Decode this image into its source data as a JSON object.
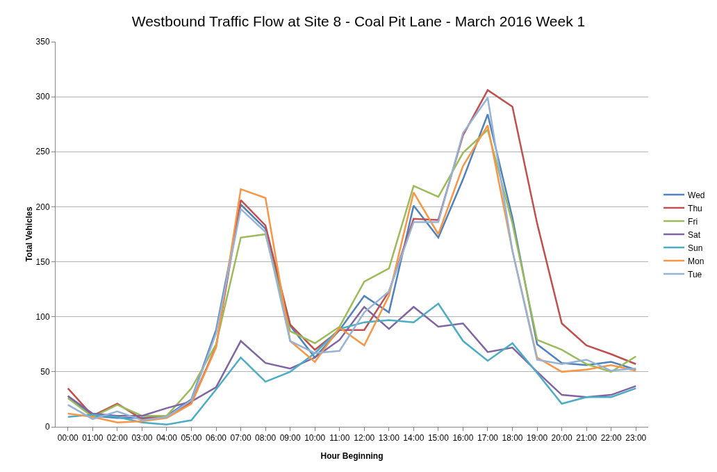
{
  "chart_data": {
    "type": "line",
    "title": "Westbound Traffic Flow at Site 8 - Coal Pit Lane - March 2016 Week 1",
    "xlabel": "Hour Beginning",
    "ylabel": "Total Vehicles",
    "categories": [
      "00:00",
      "01:00",
      "02:00",
      "03:00",
      "04:00",
      "05:00",
      "06:00",
      "07:00",
      "08:00",
      "09:00",
      "10:00",
      "11:00",
      "12:00",
      "13:00",
      "14:00",
      "15:00",
      "16:00",
      "17:00",
      "18:00",
      "19:00",
      "20:00",
      "21:00",
      "22:00",
      "23:00"
    ],
    "series": [
      {
        "name": "Wed",
        "color": "#4f81bd",
        "values": [
          28,
          10,
          8,
          8,
          10,
          25,
          88,
          202,
          180,
          92,
          63,
          88,
          119,
          104,
          201,
          172,
          225,
          284,
          190,
          75,
          58,
          56,
          59,
          52
        ]
      },
      {
        "name": "Thu",
        "color": "#c0504d",
        "values": [
          35,
          10,
          21,
          7,
          10,
          22,
          73,
          206,
          183,
          93,
          70,
          88,
          88,
          123,
          189,
          188,
          265,
          306,
          291,
          185,
          94,
          74,
          66,
          57
        ]
      },
      {
        "name": "Fri",
        "color": "#9bbb59",
        "values": [
          26,
          9,
          20,
          10,
          10,
          35,
          75,
          172,
          175,
          87,
          76,
          91,
          132,
          144,
          219,
          209,
          249,
          270,
          185,
          79,
          70,
          57,
          50,
          64
        ]
      },
      {
        "name": "Sat",
        "color": "#8064a2",
        "values": [
          28,
          12,
          10,
          10,
          17,
          23,
          36,
          78,
          58,
          53,
          63,
          79,
          109,
          89,
          109,
          91,
          94,
          68,
          72,
          50,
          29,
          27,
          29,
          37
        ]
      },
      {
        "name": "Sun",
        "color": "#4bacc6",
        "values": [
          9,
          11,
          9,
          4,
          2,
          6,
          34,
          63,
          41,
          50,
          67,
          89,
          95,
          97,
          95,
          112,
          78,
          60,
          76,
          49,
          21,
          27,
          27,
          35
        ]
      },
      {
        "name": "Mon",
        "color": "#f79646",
        "values": [
          12,
          9,
          4,
          5,
          8,
          21,
          72,
          216,
          208,
          78,
          59,
          90,
          74,
          119,
          213,
          175,
          237,
          274,
          160,
          63,
          50,
          52,
          56,
          51
        ]
      },
      {
        "name": "Tue",
        "color": "#95b3d7",
        "values": [
          20,
          7,
          14,
          6,
          9,
          24,
          85,
          198,
          177,
          78,
          67,
          69,
          104,
          123,
          186,
          186,
          267,
          299,
          160,
          61,
          57,
          61,
          51,
          53
        ]
      }
    ],
    "ylim": [
      0,
      350
    ],
    "yticks": [
      0,
      50,
      100,
      150,
      200,
      250,
      300,
      350
    ],
    "grid": "y",
    "legend": "right",
    "marker": "none",
    "line_style": "solid"
  }
}
